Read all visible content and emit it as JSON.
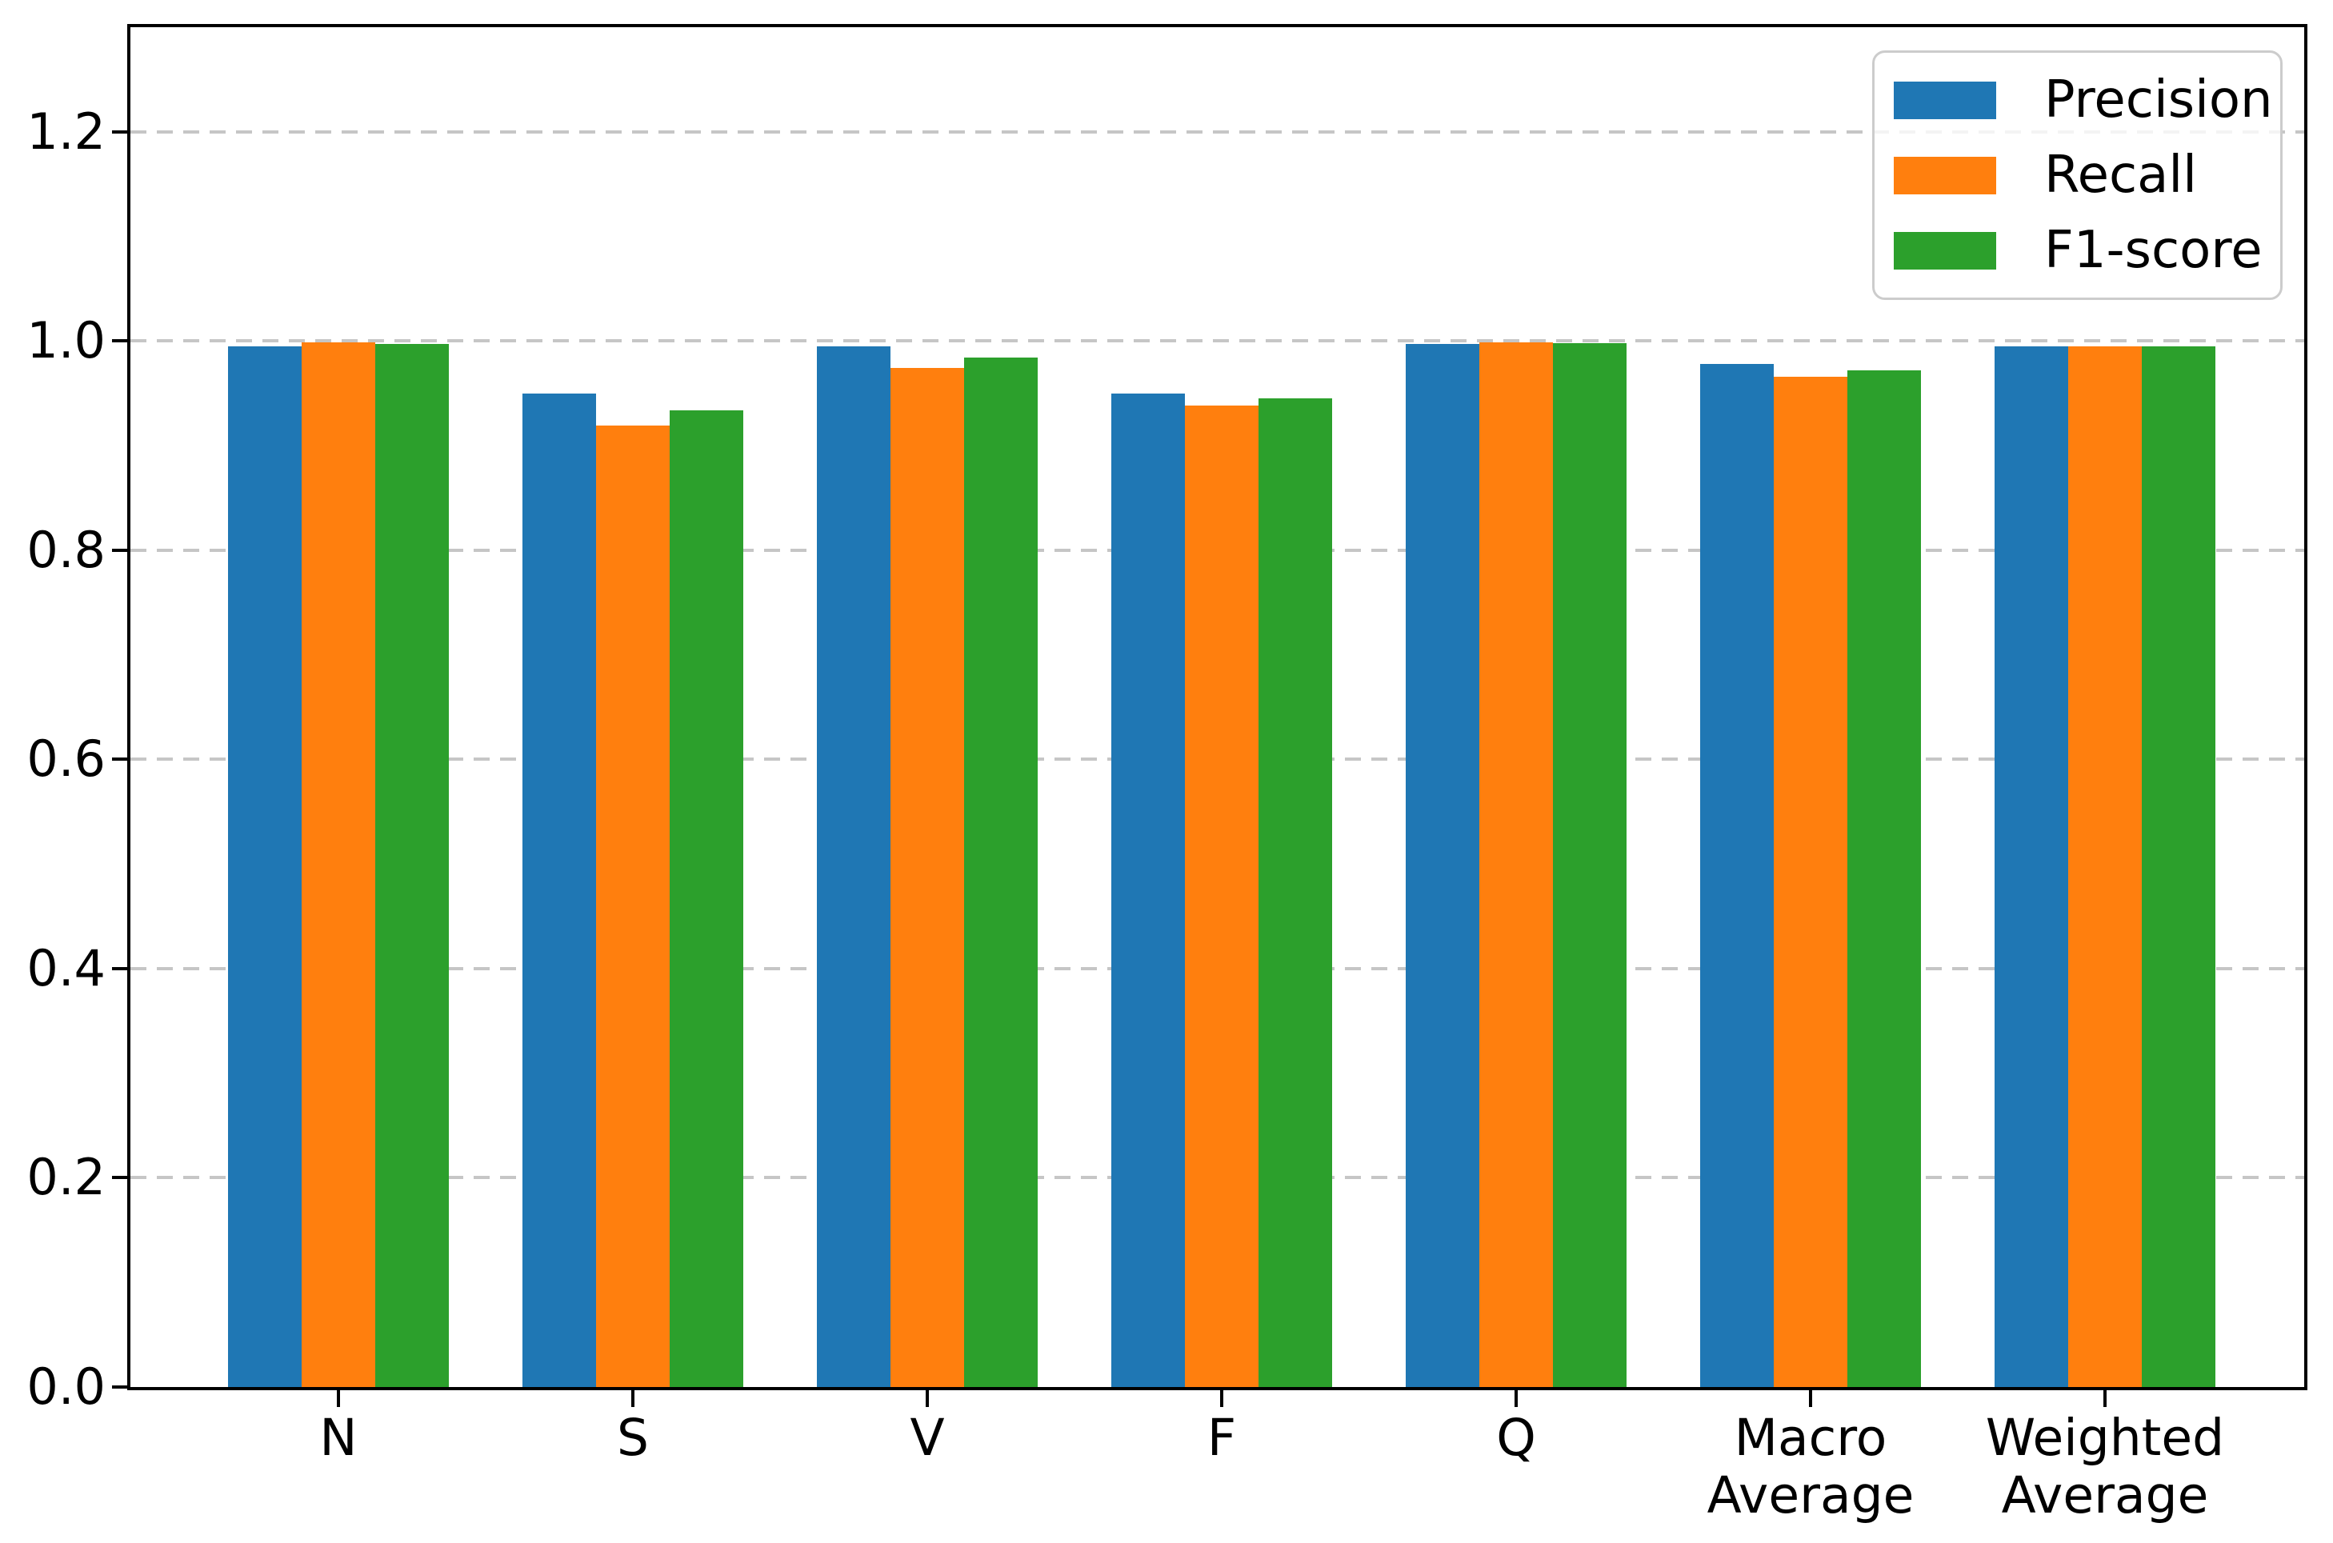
{
  "chart_data": {
    "type": "bar",
    "title": "",
    "xlabel": "",
    "ylabel": "",
    "categories": [
      "N",
      "S",
      "V",
      "F",
      "Q",
      "Macro Average",
      "Weighted Average"
    ],
    "category_display_lines": [
      [
        "N"
      ],
      [
        "S"
      ],
      [
        "V"
      ],
      [
        "F"
      ],
      [
        "Q"
      ],
      [
        "Macro",
        "Average"
      ],
      [
        "Weighted",
        "Average"
      ]
    ],
    "series": [
      {
        "name": "Precision",
        "color": "#1f77b4",
        "values": [
          0.995,
          0.95,
          0.995,
          0.95,
          0.997,
          0.978,
          0.995
        ]
      },
      {
        "name": "Recall",
        "color": "#ff7f0e",
        "values": [
          0.999,
          0.919,
          0.974,
          0.938,
          0.999,
          0.966,
          0.995
        ]
      },
      {
        "name": "F1-score",
        "color": "#2ca02c",
        "values": [
          0.997,
          0.934,
          0.984,
          0.945,
          0.998,
          0.972,
          0.995
        ]
      }
    ],
    "ylim": [
      0,
      1.3
    ],
    "yticks": [
      0.0,
      0.2,
      0.4,
      0.6,
      0.8,
      1.0,
      1.2
    ],
    "ytick_labels": [
      "0.0",
      "0.2",
      "0.4",
      "0.6",
      "0.8",
      "1.0",
      "1.2"
    ],
    "grid": "horizontal-dashed",
    "legend_position": "top-right",
    "legend_entries": [
      "Precision",
      "Recall",
      "F1-score"
    ]
  },
  "colors": {
    "background": "#ffffff",
    "spine": "#000000",
    "grid": "#c6c6c6",
    "legend_border": "#cccccc",
    "text": "#000000"
  }
}
